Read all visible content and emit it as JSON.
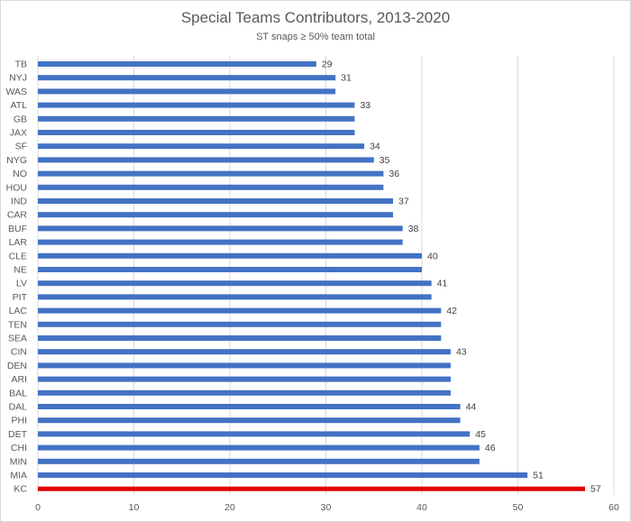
{
  "chart_data": {
    "type": "bar",
    "orientation": "horizontal",
    "title": "Special Teams Contributors, 2013-2020",
    "subtitle": "ST snaps ≥ 50% team total",
    "xlabel": "",
    "ylabel": "",
    "xlim": [
      0,
      60
    ],
    "xticks": [
      0,
      10,
      20,
      30,
      40,
      50,
      60
    ],
    "grid": true,
    "legend": "none",
    "bar_color": "#4472c4",
    "highlight_color": "#e00000",
    "highlight_category": "KC",
    "categories": [
      "TB",
      "NYJ",
      "WAS",
      "ATL",
      "GB",
      "JAX",
      "SF",
      "NYG",
      "NO",
      "HOU",
      "IND",
      "CAR",
      "BUF",
      "LAR",
      "CLE",
      "NE",
      "LV",
      "PIT",
      "LAC",
      "TEN",
      "SEA",
      "CIN",
      "DEN",
      "ARI",
      "BAL",
      "DAL",
      "PHI",
      "DET",
      "CHI",
      "MIN",
      "MIA",
      "KC"
    ],
    "values": [
      29,
      31,
      31,
      33,
      33,
      33,
      34,
      35,
      36,
      36,
      37,
      37,
      38,
      38,
      40,
      40,
      41,
      41,
      42,
      42,
      42,
      43,
      43,
      43,
      43,
      44,
      44,
      45,
      46,
      46,
      51,
      57
    ],
    "data_labels": [
      "29",
      "31",
      "",
      "33",
      "",
      "",
      "34",
      "35",
      "36",
      "",
      "37",
      "",
      "38",
      "",
      "40",
      "",
      "41",
      "",
      "42",
      "",
      "",
      "43",
      "",
      "",
      "",
      "44",
      "",
      "45",
      "46",
      "",
      "51",
      "57"
    ]
  }
}
